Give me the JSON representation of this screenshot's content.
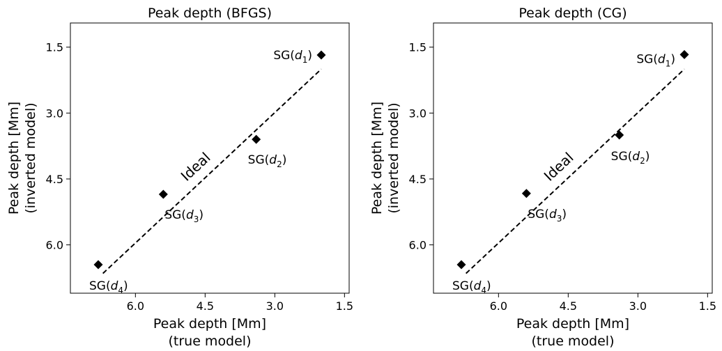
{
  "chart_data": [
    {
      "type": "scatter",
      "title": "Peak depth (BFGS)",
      "xlabel": [
        "Peak depth [Mm]",
        "(true model)"
      ],
      "ylabel": [
        "Peak depth [Mm]",
        "(inverted model)"
      ],
      "xlim": [
        7.4,
        1.4
      ],
      "ylim": [
        7.1,
        0.95
      ],
      "xticks": [
        "6.0",
        "4.5",
        "3.0",
        "1.5"
      ],
      "yticks": [
        "1.5",
        "3.0",
        "4.5",
        "6.0"
      ],
      "grid": false,
      "points": [
        {
          "label_pre": "SG(",
          "label_var": "d",
          "label_sub": "1",
          "label_post": ")",
          "x": 2.0,
          "y": 1.68
        },
        {
          "label_pre": "SG(",
          "label_var": "d",
          "label_sub": "2",
          "label_post": ")",
          "x": 3.4,
          "y": 3.6
        },
        {
          "label_pre": "SG(",
          "label_var": "d",
          "label_sub": "3",
          "label_post": ")",
          "x": 5.4,
          "y": 4.85
        },
        {
          "label_pre": "SG(",
          "label_var": "d",
          "label_sub": "4",
          "label_post": ")",
          "x": 6.8,
          "y": 6.45
        }
      ],
      "ideal_line": {
        "label": "Ideal",
        "x": [
          6.7,
          2.0
        ],
        "y": [
          6.65,
          2.0
        ]
      }
    },
    {
      "type": "scatter",
      "title": "Peak depth (CG)",
      "xlabel": [
        "Peak depth [Mm]",
        "(true model)"
      ],
      "ylabel": [
        "Peak depth [Mm]",
        "(inverted model)"
      ],
      "xlim": [
        7.4,
        1.4
      ],
      "ylim": [
        7.1,
        0.95
      ],
      "xticks": [
        "6.0",
        "4.5",
        "3.0",
        "1.5"
      ],
      "yticks": [
        "1.5",
        "3.0",
        "4.5",
        "6.0"
      ],
      "grid": false,
      "points": [
        {
          "label_pre": "SG(",
          "label_var": "d",
          "label_sub": "1",
          "label_post": ")",
          "x": 2.0,
          "y": 1.67
        },
        {
          "label_pre": "SG(",
          "label_var": "d",
          "label_sub": "2",
          "label_post": ")",
          "x": 3.4,
          "y": 3.5
        },
        {
          "label_pre": "SG(",
          "label_var": "d",
          "label_sub": "3",
          "label_post": ")",
          "x": 5.4,
          "y": 4.83
        },
        {
          "label_pre": "SG(",
          "label_var": "d",
          "label_sub": "4",
          "label_post": ")",
          "x": 6.8,
          "y": 6.45
        }
      ],
      "ideal_line": {
        "label": "Ideal",
        "x": [
          6.7,
          2.0
        ],
        "y": [
          6.65,
          2.0
        ]
      }
    }
  ]
}
